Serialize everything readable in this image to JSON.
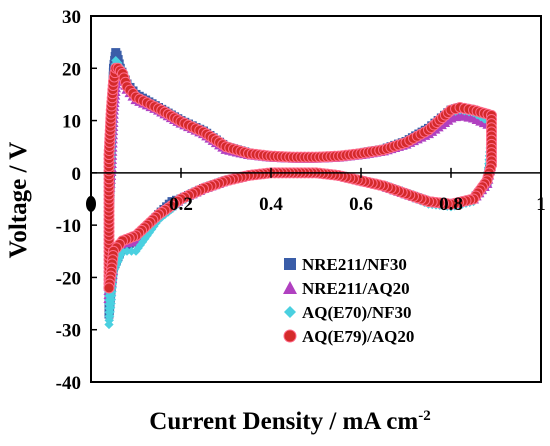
{
  "chart_data": {
    "type": "line",
    "title": "",
    "xlabel": "Current Density / mA cm",
    "xlabel_superscript": "-2",
    "ylabel": "Voltage / V",
    "xlim": [
      0,
      1
    ],
    "ylim": [
      -40,
      30
    ],
    "x_tick_labels": [
      "0.2",
      "0.4",
      "0.6",
      "0.8",
      "1"
    ],
    "x_tick_values": [
      0.2,
      0.4,
      0.6,
      0.8,
      1.0
    ],
    "y_tick_labels": [
      "30",
      "20",
      "10",
      "0",
      "-10",
      "-20",
      "-30",
      "-40"
    ],
    "y_tick_values": [
      30,
      20,
      10,
      0,
      -10,
      -20,
      -30,
      -40
    ],
    "grid": false,
    "legend_position": "bottom-right",
    "colors": {
      "NRE211/NF30": "#3a5da8",
      "NRE211/AQ20": "#b040c0",
      "AQ(E70)/NF30": "#4ad0e0",
      "AQ(E79)/AQ20": "#d42a2a"
    },
    "series": [
      {
        "name": "NRE211/NF30",
        "marker": "square",
        "x": [
          0.04,
          0.04,
          0.045,
          0.05,
          0.055,
          0.058,
          0.065,
          0.08,
          0.1,
          0.15,
          0.2,
          0.25,
          0.3,
          0.35,
          0.4,
          0.45,
          0.5,
          0.55,
          0.6,
          0.65,
          0.7,
          0.75,
          0.8,
          0.82,
          0.85,
          0.89,
          0.89,
          0.88,
          0.85,
          0.8,
          0.75,
          0.7,
          0.65,
          0.6,
          0.55,
          0.5,
          0.45,
          0.4,
          0.35,
          0.3,
          0.25,
          0.2,
          0.18,
          0.15,
          0.1,
          0.07,
          0.05,
          0.045,
          0.04
        ],
        "y": [
          -27,
          -10,
          5,
          20,
          23,
          22.5,
          20,
          17,
          15,
          12.5,
          10,
          8,
          5,
          3.8,
          3.2,
          3,
          3,
          3.2,
          3.8,
          4.5,
          6,
          8.5,
          12,
          12.5,
          12,
          10,
          3,
          -2,
          -5,
          -6,
          -5.5,
          -4,
          -2.5,
          -1.5,
          -0.5,
          0,
          0,
          0,
          -0.5,
          -1.5,
          -3,
          -5,
          -5.5,
          -8,
          -13,
          -14,
          -18,
          -22,
          -27
        ]
      },
      {
        "name": "NRE211/AQ20",
        "marker": "triangle",
        "x": [
          0.04,
          0.04,
          0.045,
          0.05,
          0.055,
          0.06,
          0.07,
          0.08,
          0.1,
          0.15,
          0.2,
          0.25,
          0.3,
          0.35,
          0.4,
          0.45,
          0.5,
          0.55,
          0.6,
          0.65,
          0.7,
          0.75,
          0.8,
          0.82,
          0.85,
          0.89,
          0.89,
          0.88,
          0.85,
          0.8,
          0.75,
          0.7,
          0.65,
          0.6,
          0.55,
          0.5,
          0.45,
          0.4,
          0.35,
          0.3,
          0.25,
          0.2,
          0.15,
          0.1,
          0.07,
          0.05,
          0.045,
          0.04
        ],
        "y": [
          -24,
          -5,
          1,
          12,
          17,
          19,
          19,
          16,
          14,
          12,
          9.5,
          7.5,
          4.5,
          3.5,
          3,
          2.8,
          2.8,
          3,
          3.5,
          4.2,
          5.5,
          7.5,
          10.5,
          11,
          10.5,
          9,
          2,
          -2,
          -5,
          -6,
          -5.5,
          -4,
          -2.5,
          -1.5,
          -0.5,
          0,
          0,
          0,
          -0.5,
          -1.5,
          -3,
          -5,
          -8,
          -13,
          -13.5,
          -17,
          -21,
          -24
        ]
      },
      {
        "name": "AQ(E70)/NF30",
        "marker": "diamond",
        "x": [
          0.04,
          0.04,
          0.045,
          0.05,
          0.055,
          0.06,
          0.07,
          0.08,
          0.1,
          0.15,
          0.2,
          0.25,
          0.3,
          0.35,
          0.4,
          0.45,
          0.5,
          0.55,
          0.6,
          0.65,
          0.7,
          0.75,
          0.8,
          0.82,
          0.85,
          0.89,
          0.89,
          0.88,
          0.85,
          0.8,
          0.75,
          0.7,
          0.65,
          0.6,
          0.55,
          0.5,
          0.45,
          0.4,
          0.35,
          0.3,
          0.25,
          0.2,
          0.15,
          0.1,
          0.07,
          0.05,
          0.045,
          0.04
        ],
        "y": [
          -29,
          -8,
          3,
          18,
          21.5,
          21,
          19.5,
          16.5,
          14.5,
          12,
          9.5,
          7.5,
          4.8,
          3.6,
          3.1,
          2.9,
          2.9,
          3.1,
          3.6,
          4.3,
          5.7,
          8,
          11.5,
          12,
          11.5,
          9.5,
          8.5,
          -2,
          -5.5,
          -6.5,
          -6,
          -4.2,
          -2.7,
          -1.6,
          -0.6,
          0,
          0,
          0,
          -0.6,
          -1.7,
          -3.2,
          -5.5,
          -9,
          -15,
          -15,
          -19,
          -25,
          -29
        ]
      },
      {
        "name": "AQ(E79)/AQ20",
        "marker": "circle",
        "x": [
          0.04,
          0.04,
          0.045,
          0.05,
          0.055,
          0.06,
          0.07,
          0.08,
          0.1,
          0.15,
          0.2,
          0.25,
          0.3,
          0.35,
          0.4,
          0.45,
          0.5,
          0.55,
          0.6,
          0.65,
          0.7,
          0.75,
          0.8,
          0.82,
          0.85,
          0.89,
          0.89,
          0.88,
          0.85,
          0.8,
          0.75,
          0.7,
          0.65,
          0.6,
          0.55,
          0.5,
          0.45,
          0.4,
          0.35,
          0.3,
          0.25,
          0.2,
          0.15,
          0.1,
          0.07,
          0.05,
          0.045,
          0.04
        ],
        "y": [
          -22,
          3.5,
          12,
          17.5,
          20,
          20,
          19,
          16.5,
          14.5,
          12.3,
          9.8,
          7.8,
          5,
          3.7,
          3.2,
          3,
          3,
          3.2,
          3.7,
          4.4,
          5.8,
          8.2,
          12,
          12.5,
          12,
          11,
          1.5,
          -1.5,
          -5,
          -6,
          -5.5,
          -4,
          -2.5,
          -1.5,
          -0.5,
          0,
          0,
          0,
          -0.5,
          -1.5,
          -3,
          -5,
          -8,
          -12,
          -13,
          -15,
          -19,
          -22
        ]
      }
    ]
  }
}
